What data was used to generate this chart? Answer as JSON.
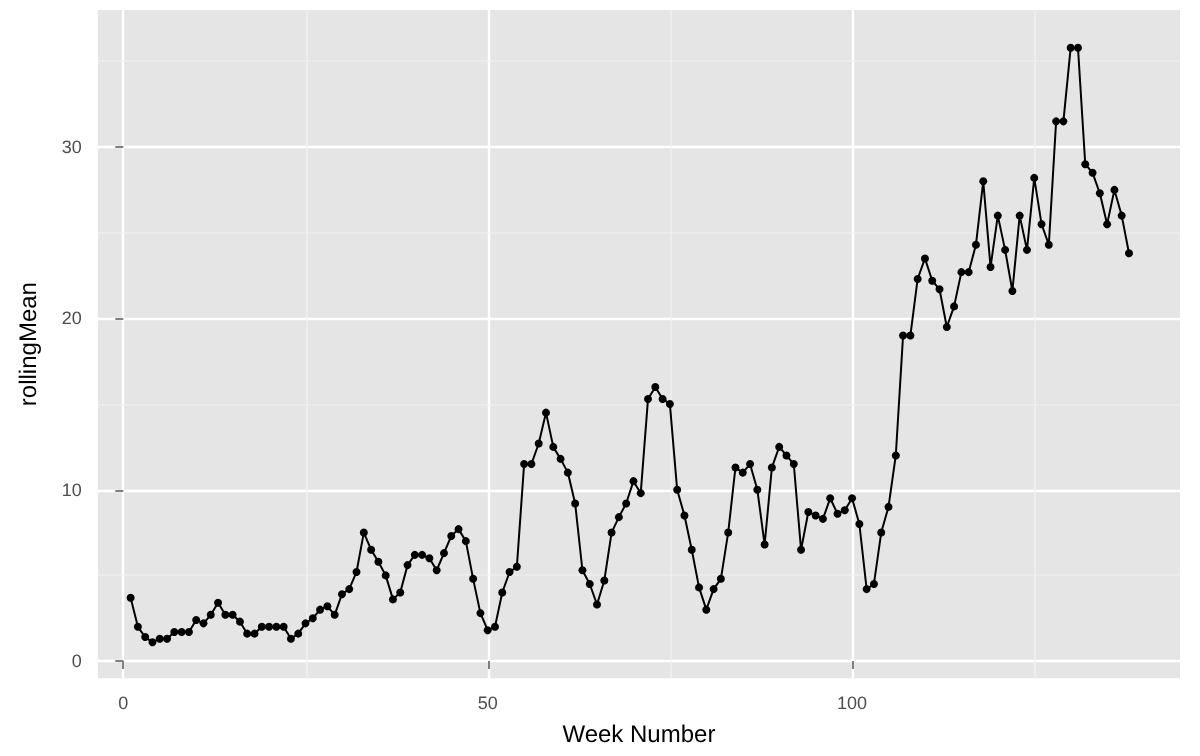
{
  "chart_data": {
    "type": "line",
    "xlabel": "Week Number",
    "ylabel": "rollingMean",
    "x": [
      1,
      2,
      3,
      4,
      5,
      6,
      7,
      8,
      9,
      10,
      11,
      12,
      13,
      14,
      15,
      16,
      17,
      18,
      19,
      20,
      21,
      22,
      23,
      24,
      25,
      26,
      27,
      28,
      29,
      30,
      31,
      32,
      33,
      34,
      35,
      36,
      37,
      38,
      39,
      40,
      41,
      42,
      43,
      44,
      45,
      46,
      47,
      48,
      49,
      50,
      51,
      52,
      53,
      54,
      55,
      56,
      57,
      58,
      59,
      60,
      61,
      62,
      63,
      64,
      65,
      66,
      67,
      68,
      69,
      70,
      71,
      72,
      73,
      74,
      75,
      76,
      77,
      78,
      79,
      80,
      81,
      82,
      83,
      84,
      85,
      86,
      87,
      88,
      89,
      90,
      91,
      92,
      93,
      94,
      95,
      96,
      97,
      98,
      99,
      100,
      101,
      102,
      103,
      104,
      105,
      106,
      107,
      108,
      109,
      110,
      111,
      112,
      113,
      114,
      115,
      116,
      117,
      118,
      119,
      120,
      121,
      122,
      123,
      124,
      125,
      126,
      127,
      128,
      129,
      130,
      131,
      132,
      133,
      134,
      135,
      136,
      137,
      138
    ],
    "series": [
      {
        "color": "#000000",
        "values": [
          3.7,
          2.0,
          1.4,
          1.1,
          1.3,
          1.3,
          1.7,
          1.7,
          1.7,
          2.4,
          2.2,
          2.7,
          3.4,
          2.7,
          2.7,
          2.3,
          1.6,
          1.6,
          2.0,
          2.0,
          2.0,
          2.0,
          1.3,
          1.6,
          2.2,
          2.5,
          3.0,
          3.2,
          2.7,
          3.9,
          4.2,
          5.2,
          7.5,
          6.5,
          5.8,
          5.0,
          3.6,
          4.0,
          5.6,
          6.2,
          6.2,
          6.0,
          5.3,
          6.3,
          7.3,
          7.7,
          7.0,
          4.8,
          2.8,
          1.8,
          2.0,
          4.0,
          5.2,
          5.5,
          11.5,
          11.5,
          12.7,
          14.5,
          12.5,
          11.8,
          11.0,
          9.2,
          5.3,
          4.5,
          3.3,
          4.7,
          7.5,
          8.4,
          9.2,
          10.5,
          9.8,
          15.3,
          16.0,
          15.3,
          15.0,
          10.0,
          8.5,
          6.5,
          4.3,
          3.0,
          4.2,
          4.8,
          7.5,
          11.3,
          11.0,
          11.5,
          10.0,
          6.8,
          11.3,
          12.5,
          12.0,
          11.5,
          6.5,
          8.7,
          8.5,
          8.3,
          9.5,
          8.6,
          8.8,
          9.5,
          8.0,
          4.2,
          4.5,
          7.5,
          9.0,
          12.0,
          19.0,
          19.0,
          22.3,
          23.5,
          22.2,
          21.7,
          19.5,
          20.7,
          22.7,
          22.7,
          24.3,
          28.0,
          23.0,
          26.0,
          24.0,
          21.6,
          26.0,
          24.0,
          28.2,
          25.5,
          24.3,
          31.5,
          31.5,
          35.8,
          35.8,
          29.0,
          28.5,
          27.3,
          25.5,
          27.5,
          26.0,
          23.8
        ]
      }
    ],
    "xlim": [
      -3.5,
      145
    ],
    "xticks": [
      0,
      50,
      100
    ],
    "ylim": [
      -1,
      38
    ],
    "yticks": [
      0,
      10,
      20,
      30
    ],
    "grid": true,
    "marker": "circle",
    "line_style": "solid"
  }
}
